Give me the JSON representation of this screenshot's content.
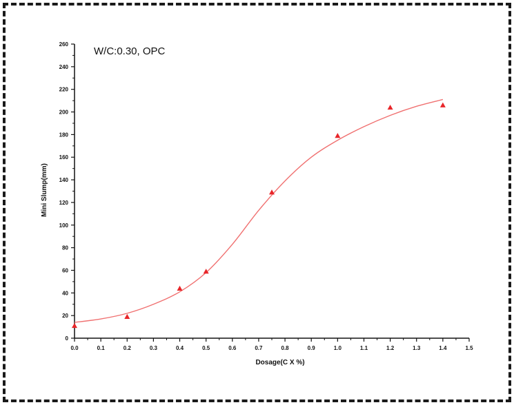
{
  "chart_data": {
    "type": "scatter",
    "annotation": "W/C:0.30, OPC",
    "xlabel": "Dosage(C X %)",
    "ylabel": "Mini Slump(mm)",
    "xlim": [
      0.0,
      1.5
    ],
    "ylim": [
      0,
      260
    ],
    "xticks": [
      0.0,
      0.1,
      0.2,
      0.3,
      0.4,
      0.5,
      0.6,
      0.7,
      0.8,
      0.9,
      1.0,
      1.1,
      1.2,
      1.3,
      1.4,
      1.5
    ],
    "yticks": [
      0,
      20,
      40,
      60,
      80,
      100,
      120,
      140,
      160,
      180,
      200,
      220,
      240,
      260
    ],
    "marker_color": "#e8262a",
    "fit_color": "#f07070",
    "points": [
      {
        "x": 0.0,
        "y": 11
      },
      {
        "x": 0.2,
        "y": 19
      },
      {
        "x": 0.4,
        "y": 44
      },
      {
        "x": 0.5,
        "y": 59
      },
      {
        "x": 0.75,
        "y": 129
      },
      {
        "x": 1.0,
        "y": 179
      },
      {
        "x": 1.2,
        "y": 204
      },
      {
        "x": 1.4,
        "y": 206
      }
    ],
    "fit_curve": [
      {
        "x": 0.0,
        "y": 14
      },
      {
        "x": 0.1,
        "y": 17
      },
      {
        "x": 0.2,
        "y": 22
      },
      {
        "x": 0.3,
        "y": 30
      },
      {
        "x": 0.4,
        "y": 41
      },
      {
        "x": 0.5,
        "y": 58
      },
      {
        "x": 0.6,
        "y": 83
      },
      {
        "x": 0.7,
        "y": 113
      },
      {
        "x": 0.8,
        "y": 139
      },
      {
        "x": 0.9,
        "y": 160
      },
      {
        "x": 1.0,
        "y": 175
      },
      {
        "x": 1.1,
        "y": 187
      },
      {
        "x": 1.2,
        "y": 197
      },
      {
        "x": 1.3,
        "y": 205
      },
      {
        "x": 1.4,
        "y": 211
      }
    ]
  }
}
